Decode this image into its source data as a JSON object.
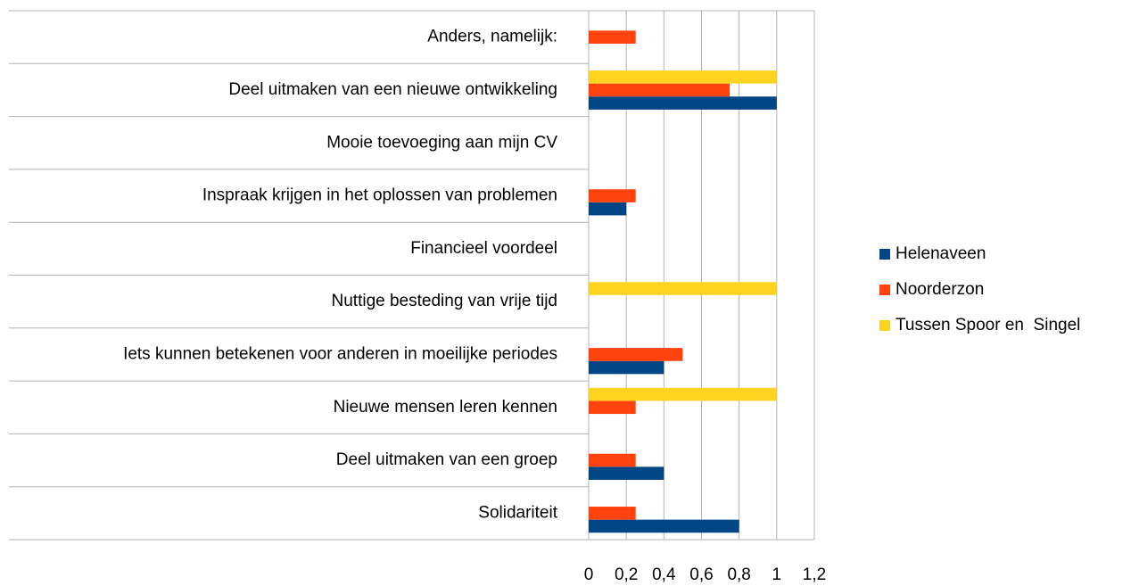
{
  "chart_data": {
    "type": "hbar",
    "categories": [
      "Anders, namelijk:",
      "Deel uitmaken van een nieuwe ontwikkeling",
      "Mooie toevoeging aan mijn CV",
      "Inspraak krijgen in het oplossen van problemen",
      "Financieel voordeel",
      "Nuttige besteding van vrije tijd",
      "Iets kunnen betekenen voor anderen in moeilijke periodes",
      "Nieuwe mensen leren kennen",
      "Deel uitmaken van een groep",
      "Solidariteit"
    ],
    "series": [
      {
        "name": "Helenaveen",
        "color": "#004586",
        "values": [
          0,
          1,
          0,
          0.2,
          0,
          0,
          0.4,
          0,
          0.4,
          0.8
        ]
      },
      {
        "name": "Noorderzon",
        "color": "#ff420e",
        "values": [
          0.25,
          0.75,
          0,
          0.25,
          0,
          0,
          0.5,
          0.25,
          0.25,
          0.25
        ]
      },
      {
        "name": "Tussen Spoor en  Singel",
        "color": "#ffd320",
        "values": [
          0,
          1,
          0,
          0,
          0,
          1,
          0,
          1,
          0,
          0
        ]
      }
    ],
    "xlim": [
      0,
      1.2
    ],
    "xticks": [
      0,
      {
        "value": 0.2,
        "label": "0,2"
      },
      {
        "value": 0.4,
        "label": "0,4"
      },
      {
        "value": 0.6,
        "label": "0,6"
      },
      {
        "value": 0.8,
        "label": "0,8"
      },
      1,
      {
        "value": 1.2,
        "label": "1,2"
      }
    ],
    "grid": true,
    "legend": "right"
  }
}
